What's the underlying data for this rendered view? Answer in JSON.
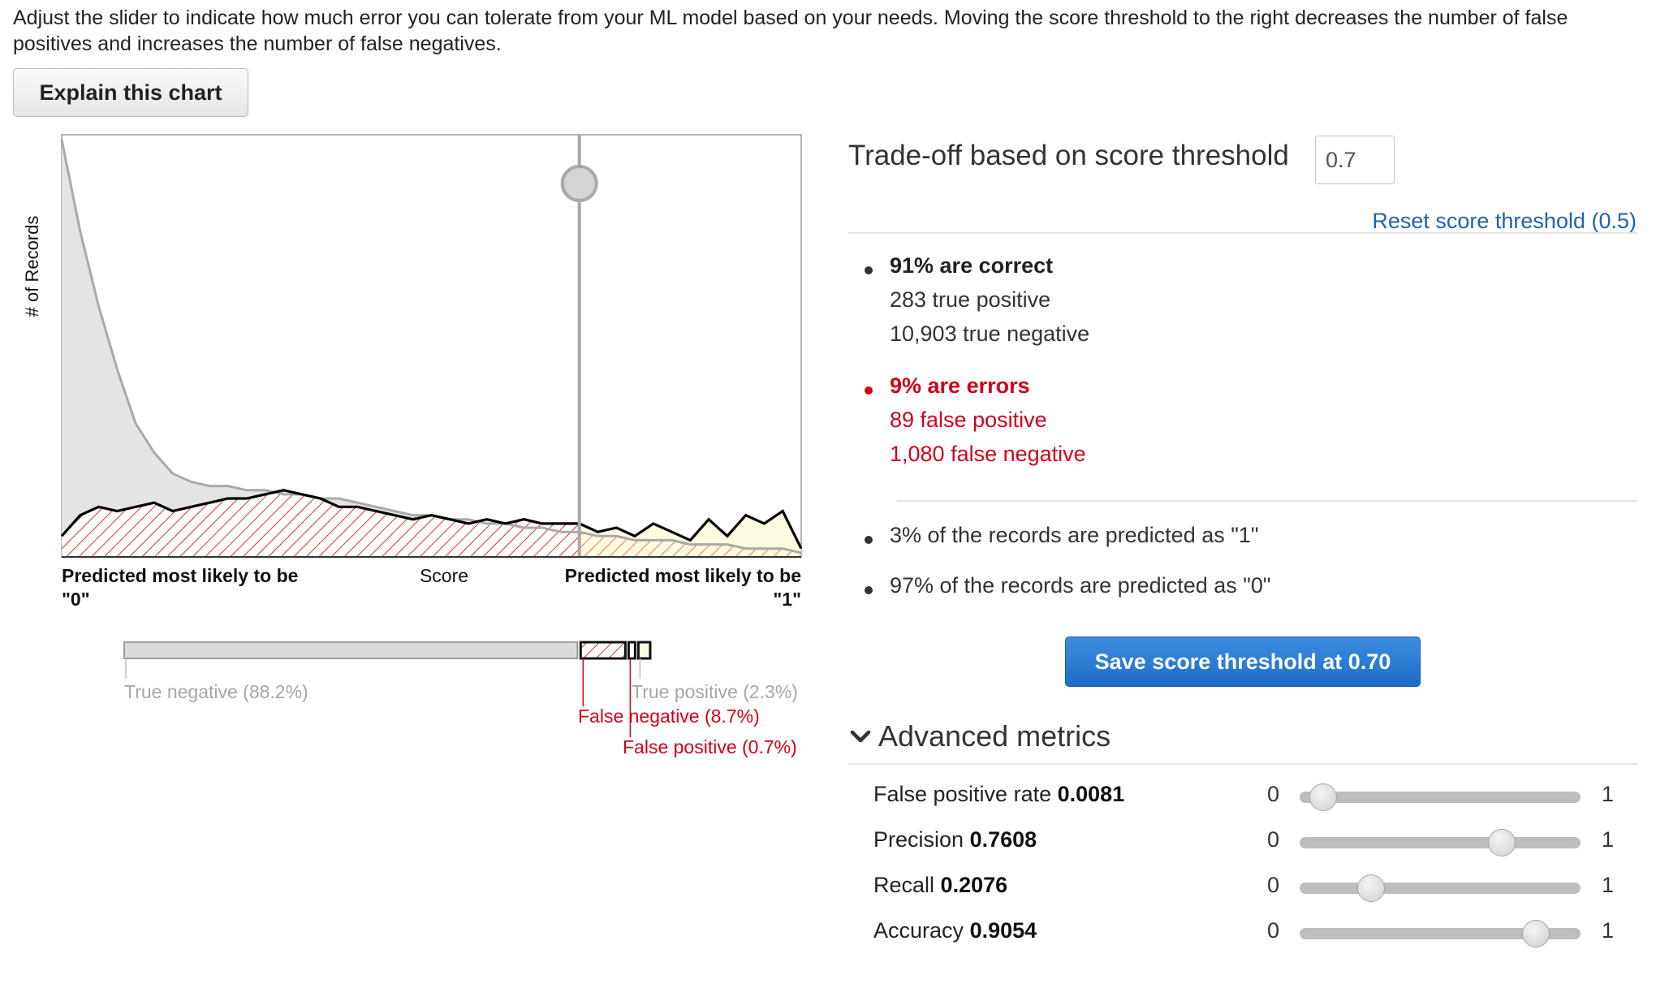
{
  "intro_text": "Adjust the slider to indicate how much error you can tolerate from your ML model based on your needs. Moving the score threshold to the right decreases the number of false positives and increases the number of false negatives.",
  "explain_button": "Explain this chart",
  "chart": {
    "y_axis_label": "# of Records",
    "x_axis_label": "Score",
    "left_caption_line1": "Predicted most likely to be",
    "left_caption_line2": "\"0\"",
    "right_caption_line1": "Predicted most likely to be",
    "right_caption_line2": "\"1\"",
    "threshold": 0.7,
    "colors": {
      "negative_fill": "#e4e4e4",
      "negative_line": "#a9a9a9",
      "positive_line": "#000000",
      "error_hatch": "#d9342b",
      "positive_fill": "#fdfbe0"
    }
  },
  "chart_data": {
    "type": "area",
    "x": [
      0.0,
      0.025,
      0.05,
      0.075,
      0.1,
      0.125,
      0.15,
      0.175,
      0.2,
      0.225,
      0.25,
      0.275,
      0.3,
      0.325,
      0.35,
      0.375,
      0.4,
      0.425,
      0.45,
      0.475,
      0.5,
      0.525,
      0.55,
      0.575,
      0.6,
      0.625,
      0.65,
      0.675,
      0.7,
      0.725,
      0.75,
      0.775,
      0.8,
      0.825,
      0.85,
      0.875,
      0.9,
      0.925,
      0.95,
      0.975,
      1.0
    ],
    "series": [
      {
        "values": [
          100,
          78,
          60,
          45,
          32,
          25,
          20,
          18,
          17,
          17,
          16,
          16,
          15,
          15,
          14,
          14,
          13,
          12,
          11,
          10,
          10,
          9,
          9,
          8,
          8,
          7,
          7,
          6,
          6,
          5,
          5,
          4,
          4,
          4,
          3,
          3,
          3,
          2,
          2,
          2,
          1
        ]
      },
      {
        "values": [
          5,
          10,
          12,
          11,
          12,
          13,
          11,
          12,
          13,
          14,
          14,
          15,
          16,
          15,
          14,
          12,
          12,
          11,
          10,
          9,
          10,
          9,
          8,
          9,
          8,
          9,
          8,
          8,
          8,
          6,
          7,
          5,
          8,
          6,
          4,
          9,
          5,
          10,
          8,
          11,
          2
        ]
      }
    ],
    "xlim": [
      0,
      1
    ],
    "xlabel": "Score",
    "ylabel": "# of Records",
    "threshold": 0.7
  },
  "breakdown": {
    "true_negative": {
      "label": "True negative (88.2%)",
      "fraction": 0.882
    },
    "false_negative": {
      "label": "False negative (8.7%)",
      "fraction": 0.087
    },
    "false_positive": {
      "label": "False positive (0.7%)",
      "fraction": 0.007
    },
    "true_positive": {
      "label": "True positive (2.3%)",
      "fraction": 0.023
    }
  },
  "tradeoff": {
    "title": "Trade-off based on score threshold",
    "input_value": "0.7",
    "reset_link": "Reset score threshold (0.5)"
  },
  "results": {
    "correct_heading": "91% are correct",
    "true_positive": "283 true positive",
    "true_negative": "10,903 true negative",
    "errors_heading": "9% are errors",
    "false_positive": "89 false positive",
    "false_negative": "1,080 false negative",
    "pred_one": "3% of the records are predicted as \"1\"",
    "pred_zero": "97% of the records are predicted as \"0\"",
    "error_color": "#d0021b"
  },
  "save_button": "Save score threshold at 0.70",
  "advanced": {
    "header": "Advanced metrics",
    "metrics": [
      {
        "name": "False positive rate",
        "value": "0.0081",
        "min": "0",
        "max": "1",
        "level": 0.0081
      },
      {
        "name": "Precision",
        "value": "0.7608",
        "min": "0",
        "max": "1",
        "level": 0.7608
      },
      {
        "name": "Recall",
        "value": "0.2076",
        "min": "0",
        "max": "1",
        "level": 0.2076
      },
      {
        "name": "Accuracy",
        "value": "0.9054",
        "min": "0",
        "max": "1",
        "level": 0.9054
      }
    ]
  }
}
